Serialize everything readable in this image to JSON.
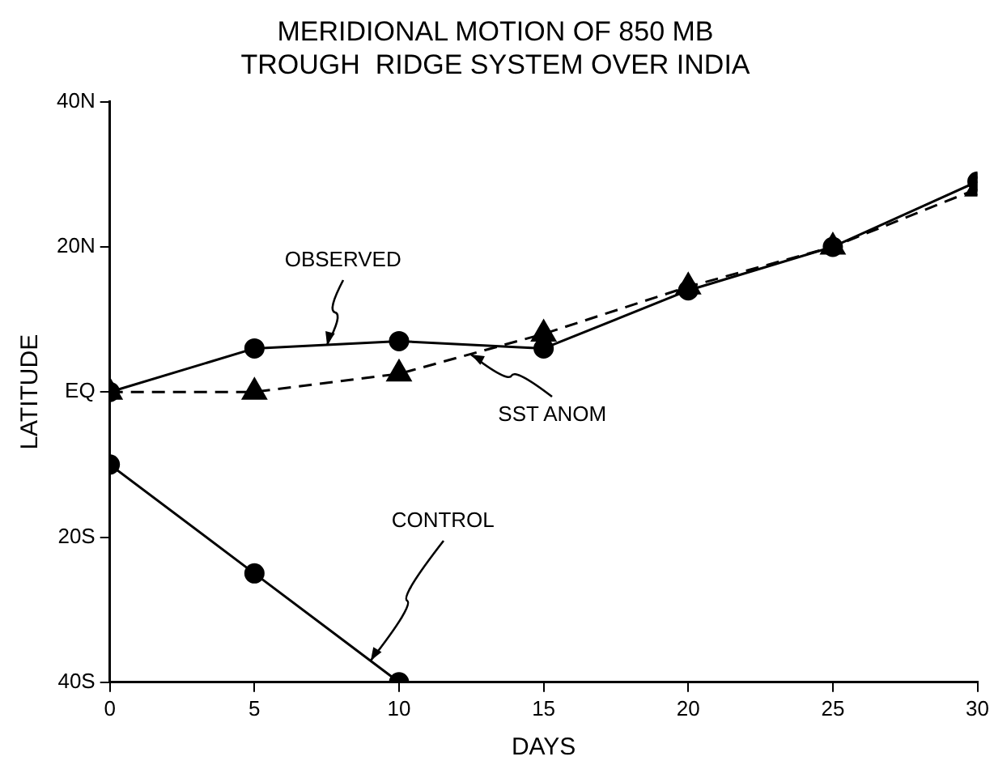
{
  "chart_data": {
    "type": "line",
    "title": "MERIDIONAL MOTION OF 850 MB\nTROUGH  RIDGE SYSTEM OVER INDIA",
    "xlabel": "DAYS",
    "ylabel": "LATITUDE",
    "x": [
      0,
      5,
      10,
      15,
      20,
      25,
      30
    ],
    "series": [
      {
        "color": "#000000",
        "marker": "circle",
        "line_style": "solid",
        "values": [
          0,
          6,
          7,
          6,
          14,
          20,
          29
        ]
      },
      {
        "color": "#000000",
        "marker": "triangle",
        "line_style": "dashed",
        "values": [
          0,
          0,
          2.5,
          8,
          14.5,
          20,
          28
        ]
      },
      {
        "color": "#000000",
        "marker": "circle",
        "line_style": "solid",
        "values": [
          -10,
          -25,
          -40,
          null,
          null,
          null,
          null
        ]
      }
    ],
    "xlim": [
      0,
      30
    ],
    "xticks": [
      0,
      5,
      10,
      15,
      20,
      25,
      30
    ],
    "ylim": [
      -40,
      40
    ],
    "yticks": [
      {
        "value": -40,
        "label": "40S"
      },
      {
        "value": -20,
        "label": "20S"
      },
      {
        "value": 0,
        "label": "EQ"
      },
      {
        "value": 20,
        "label": "20N"
      },
      {
        "value": 40,
        "label": "40N"
      }
    ],
    "grid": false,
    "legend": false,
    "annotations": [
      {
        "text": "OBSERVED",
        "x": 7.5,
        "y": 6.5
      },
      {
        "text": "SST ANOM",
        "x": 12.5,
        "y": 5.25
      },
      {
        "text": "CONTROL",
        "x": 9,
        "y": -37
      }
    ]
  }
}
